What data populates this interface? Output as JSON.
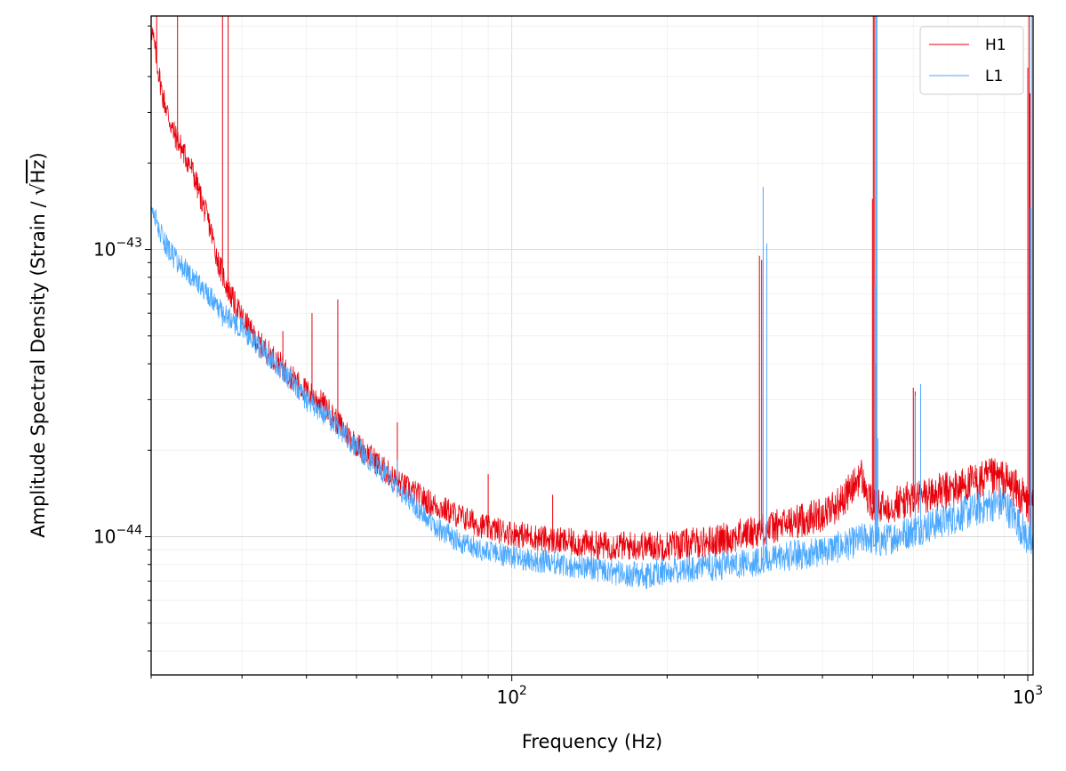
{
  "chart_data": {
    "type": "line",
    "title": "",
    "xlabel": "Frequency (Hz)",
    "ylabel_main": "Amplitude Spectral Density (Strain / ",
    "ylabel_radical": "√",
    "ylabel_unit": "Hz",
    "ylabel_close": ")",
    "xscale": "log",
    "yscale": "log",
    "xlim": [
      20,
      1024
    ],
    "ylim": [
      3.3e-45,
      6.5e-43
    ],
    "grid": true,
    "legend": "top-right",
    "x_ticks": [
      {
        "value": 100,
        "base": "10",
        "exp": "2"
      },
      {
        "value": 1000,
        "base": "10",
        "exp": "3"
      }
    ],
    "y_ticks": [
      {
        "value": 1e-44,
        "base": "10",
        "exp": "−44"
      },
      {
        "value": 1e-43,
        "base": "10",
        "exp": "−43"
      }
    ],
    "series": [
      {
        "name": "H1",
        "color": "#e8000b",
        "baseline": [
          [
            20,
            6e-43
          ],
          [
            21,
            3.5e-43
          ],
          [
            22,
            2.6e-43
          ],
          [
            24,
            1.9e-43
          ],
          [
            25,
            1.5e-43
          ],
          [
            26,
            1.2e-43
          ],
          [
            27,
            9e-44
          ],
          [
            28,
            7.5e-44
          ],
          [
            29,
            6.5e-44
          ],
          [
            30,
            5.8e-44
          ],
          [
            32,
            4.8e-44
          ],
          [
            35,
            4.1e-44
          ],
          [
            38,
            3.5e-44
          ],
          [
            40,
            3.2e-44
          ],
          [
            43,
            2.9e-44
          ],
          [
            46,
            2.5e-44
          ],
          [
            50,
            2.1e-44
          ],
          [
            55,
            1.8e-44
          ],
          [
            60,
            1.55e-44
          ],
          [
            70,
            1.3e-44
          ],
          [
            80,
            1.17e-44
          ],
          [
            90,
            1.07e-44
          ],
          [
            100,
            1.03e-44
          ],
          [
            120,
            9.7e-45
          ],
          [
            150,
            9.3e-45
          ],
          [
            200,
            9.3e-45
          ],
          [
            250,
            9.7e-45
          ],
          [
            300,
            1.05e-44
          ],
          [
            350,
            1.12e-44
          ],
          [
            400,
            1.2e-44
          ],
          [
            430,
            1.3e-44
          ],
          [
            460,
            1.5e-44
          ],
          [
            475,
            1.65e-44
          ],
          [
            490,
            1.35e-44
          ],
          [
            510,
            1.25e-44
          ],
          [
            550,
            1.3e-44
          ],
          [
            600,
            1.35e-44
          ],
          [
            700,
            1.45e-44
          ],
          [
            800,
            1.55e-44
          ],
          [
            850,
            1.6e-44
          ],
          [
            900,
            1.58e-44
          ],
          [
            950,
            1.45e-44
          ],
          [
            1000,
            1.3e-44
          ],
          [
            1024,
            1.25e-44
          ]
        ],
        "peaks": [
          [
            20.5,
            6.5e-43
          ],
          [
            22.5,
            6.5e-43
          ],
          [
            27.5,
            6.5e-43
          ],
          [
            28.2,
            6.5e-43
          ],
          [
            36,
            5.2e-44
          ],
          [
            41,
            6e-44
          ],
          [
            46,
            6.7e-44
          ],
          [
            60,
            2.5e-44
          ],
          [
            90,
            1.65e-44
          ],
          [
            120,
            1.4e-44
          ],
          [
            302,
            9.5e-44
          ],
          [
            305,
            9.2e-44
          ],
          [
            500,
            1.5e-43
          ],
          [
            502,
            6.5e-43
          ],
          [
            505,
            6.5e-43
          ],
          [
            508,
            4e-44
          ],
          [
            600,
            3.3e-44
          ],
          [
            605,
            3.2e-44
          ],
          [
            1000,
            4.3e-43
          ],
          [
            1006,
            6.5e-43
          ],
          [
            1010,
            3.5e-43
          ]
        ],
        "noise": 0.09
      },
      {
        "name": "L1",
        "color": "#4aa8ff",
        "baseline": [
          [
            20,
            1.4e-43
          ],
          [
            21,
            1.1e-43
          ],
          [
            22,
            9.5e-44
          ],
          [
            24,
            8e-44
          ],
          [
            26,
            6.8e-44
          ],
          [
            28,
            5.9e-44
          ],
          [
            30,
            5.3e-44
          ],
          [
            32,
            4.7e-44
          ],
          [
            35,
            4e-44
          ],
          [
            38,
            3.4e-44
          ],
          [
            40,
            3e-44
          ],
          [
            45,
            2.5e-44
          ],
          [
            50,
            2.05e-44
          ],
          [
            55,
            1.75e-44
          ],
          [
            60,
            1.5e-44
          ],
          [
            70,
            1.1e-44
          ],
          [
            80,
            9.5e-45
          ],
          [
            90,
            8.9e-45
          ],
          [
            100,
            8.5e-45
          ],
          [
            120,
            8.1e-45
          ],
          [
            150,
            7.6e-45
          ],
          [
            180,
            7.3e-45
          ],
          [
            200,
            7.6e-45
          ],
          [
            250,
            7.9e-45
          ],
          [
            300,
            8.2e-45
          ],
          [
            350,
            8.6e-45
          ],
          [
            400,
            8.9e-45
          ],
          [
            450,
            9.4e-45
          ],
          [
            490,
            1e-44
          ],
          [
            510,
            9.5e-45
          ],
          [
            550,
            1e-44
          ],
          [
            600,
            1.05e-44
          ],
          [
            700,
            1.15e-44
          ],
          [
            800,
            1.25e-44
          ],
          [
            850,
            1.3e-44
          ],
          [
            900,
            1.3e-44
          ],
          [
            950,
            1.15e-44
          ],
          [
            1000,
            9.8e-45
          ],
          [
            1024,
            9e-45
          ]
        ],
        "peaks": [
          [
            27.5,
            5.4e-44
          ],
          [
            60,
            1.85e-44
          ],
          [
            307,
            1.65e-43
          ],
          [
            312,
            1.05e-43
          ],
          [
            506,
            7.5e-44
          ],
          [
            508,
            6.5e-43
          ],
          [
            510,
            6.5e-43
          ],
          [
            512,
            2.2e-44
          ],
          [
            605,
            3.1e-44
          ],
          [
            620,
            3.4e-44
          ],
          [
            1012,
            1.4e-43
          ],
          [
            1016,
            6.5e-43
          ]
        ],
        "noise": 0.08
      }
    ]
  }
}
